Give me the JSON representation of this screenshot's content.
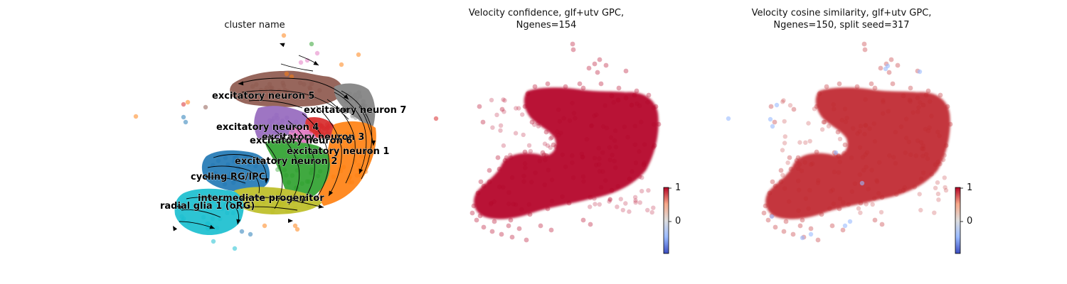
{
  "chart_data": [
    {
      "type": "scatter",
      "title": "cluster name",
      "plot_kind": "UMAP embedding with velocity stream arrows",
      "grid": false,
      "axes_visible": false,
      "clusters": [
        {
          "name": "excitatory neuron 5",
          "color": "#8c564b"
        },
        {
          "name": "excitatory neuron 7",
          "color": "#7f7f7f"
        },
        {
          "name": "excitatory neuron 4",
          "color": "#9467bd"
        },
        {
          "name": "excitatory neuron 3",
          "color": "#d62728"
        },
        {
          "name": "excitatory neuron 6",
          "color": "#e377c2"
        },
        {
          "name": "excitatory neuron 1",
          "color": "#ff7f0e"
        },
        {
          "name": "excitatory neuron 2",
          "color": "#2ca02c"
        },
        {
          "name": "cycling RG/IPC",
          "color": "#1f77b4"
        },
        {
          "name": "intermediate progenitor",
          "color": "#bcbd22"
        },
        {
          "name": "radial glia 1 (oRG)",
          "color": "#17becf"
        }
      ]
    },
    {
      "type": "scatter",
      "title_line1": "Velocity confidence, glf+utv GPC,",
      "title_line2": "Ngenes=154",
      "grid": false,
      "axes_visible": false,
      "point_color": "#b40426",
      "colorbar": {
        "cmap": "coolwarm",
        "ticks": [
          "1",
          "0"
        ],
        "range": [
          -0.9,
          1
        ]
      }
    },
    {
      "type": "scatter",
      "title_line1": "Velocity cosine similarity, glf+utv GPC,",
      "title_line2": "Ngenes=150, split seed=317",
      "grid": false,
      "axes_visible": false,
      "point_color": "#c0282d",
      "colorbar": {
        "cmap": "coolwarm",
        "ticks": [
          "1",
          "0"
        ],
        "range": [
          -0.9,
          1
        ]
      }
    }
  ]
}
